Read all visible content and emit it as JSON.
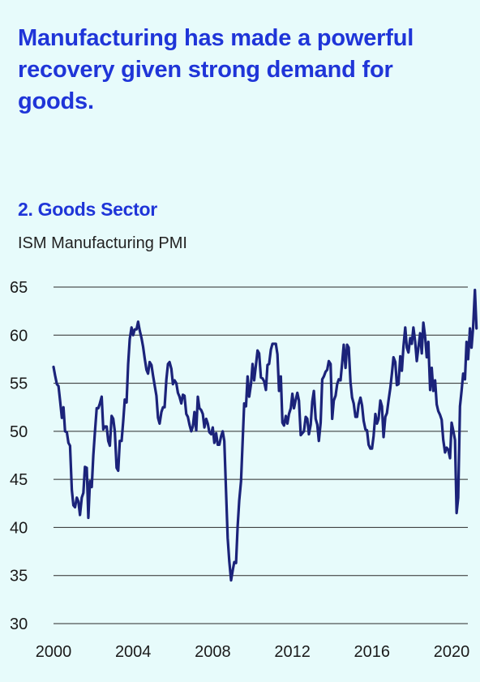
{
  "headline": "Manufacturing has made a powerful recovery given strong demand for goods.",
  "chart_data": {
    "type": "line",
    "title": "2. Goods Sector",
    "subtitle": "ISM Manufacturing PMI",
    "xlabel": "",
    "ylabel": "",
    "ylim": [
      30,
      65
    ],
    "xlim": [
      2000,
      2021.3
    ],
    "yticks": [
      30,
      35,
      40,
      45,
      50,
      55,
      60,
      65
    ],
    "xticks": [
      2000,
      2004,
      2008,
      2012,
      2016,
      2020
    ],
    "grid": "horizontal",
    "line_color": "#1b237a",
    "series": [
      {
        "x": [
          2000.0,
          2000.08,
          2000.17,
          2000.25,
          2000.33,
          2000.42,
          2000.5,
          2000.58,
          2000.67,
          2000.75,
          2000.83,
          2000.92,
          2001.0,
          2001.08,
          2001.17,
          2001.25,
          2001.33,
          2001.42,
          2001.5,
          2001.58,
          2001.67,
          2001.75,
          2001.83,
          2001.92,
          2002.0,
          2002.08,
          2002.17,
          2002.25,
          2002.33,
          2002.42,
          2002.5,
          2002.58,
          2002.67,
          2002.75,
          2002.83,
          2002.92,
          2003.0,
          2003.08,
          2003.17,
          2003.25,
          2003.33,
          2003.42,
          2003.5,
          2003.58,
          2003.67,
          2003.75,
          2003.83,
          2003.92,
          2004.0,
          2004.08,
          2004.17,
          2004.25,
          2004.33,
          2004.42,
          2004.5,
          2004.58,
          2004.67,
          2004.75,
          2004.83,
          2004.92,
          2005.0,
          2005.08,
          2005.17,
          2005.25,
          2005.33,
          2005.42,
          2005.5,
          2005.58,
          2005.67,
          2005.75,
          2005.83,
          2005.92,
          2006.0,
          2006.08,
          2006.17,
          2006.25,
          2006.33,
          2006.42,
          2006.5,
          2006.58,
          2006.67,
          2006.75,
          2006.83,
          2006.92,
          2007.0,
          2007.08,
          2007.17,
          2007.25,
          2007.33,
          2007.42,
          2007.5,
          2007.58,
          2007.67,
          2007.75,
          2007.83,
          2007.92,
          2008.0,
          2008.08,
          2008.17,
          2008.25,
          2008.33,
          2008.42,
          2008.5,
          2008.58,
          2008.67,
          2008.75,
          2008.83,
          2008.92,
          2009.0,
          2009.08,
          2009.17,
          2009.25,
          2009.33,
          2009.42,
          2009.5,
          2009.58,
          2009.67,
          2009.75,
          2009.83,
          2009.92,
          2010.0,
          2010.08,
          2010.17,
          2010.25,
          2010.33,
          2010.42,
          2010.5,
          2010.58,
          2010.67,
          2010.75,
          2010.83,
          2010.92,
          2011.0,
          2011.08,
          2011.17,
          2011.25,
          2011.33,
          2011.42,
          2011.5,
          2011.58,
          2011.67,
          2011.75,
          2011.83,
          2011.92,
          2012.0,
          2012.08,
          2012.17,
          2012.25,
          2012.33,
          2012.42,
          2012.5,
          2012.58,
          2012.67,
          2012.75,
          2012.83,
          2012.92,
          2013.0,
          2013.08,
          2013.17,
          2013.25,
          2013.33,
          2013.42,
          2013.5,
          2013.58,
          2013.67,
          2013.75,
          2013.83,
          2013.92,
          2014.0,
          2014.08,
          2014.17,
          2014.25,
          2014.33,
          2014.42,
          2014.5,
          2014.58,
          2014.67,
          2014.75,
          2014.83,
          2014.92,
          2015.0,
          2015.08,
          2015.17,
          2015.25,
          2015.33,
          2015.42,
          2015.5,
          2015.58,
          2015.67,
          2015.75,
          2015.83,
          2015.92,
          2016.0,
          2016.08,
          2016.17,
          2016.25,
          2016.33,
          2016.42,
          2016.5,
          2016.58,
          2016.67,
          2016.75,
          2016.83,
          2016.92,
          2017.0,
          2017.08,
          2017.17,
          2017.25,
          2017.33,
          2017.42,
          2017.5,
          2017.58,
          2017.67,
          2017.75,
          2017.83,
          2017.92,
          2018.0,
          2018.08,
          2018.17,
          2018.25,
          2018.33,
          2018.42,
          2018.5,
          2018.58,
          2018.67,
          2018.75,
          2018.83,
          2018.92,
          2019.0,
          2019.08,
          2019.17,
          2019.25,
          2019.33,
          2019.42,
          2019.5,
          2019.58,
          2019.67,
          2019.75,
          2019.83,
          2019.92,
          2020.0,
          2020.08,
          2020.17,
          2020.25,
          2020.33,
          2020.42,
          2020.5,
          2020.58,
          2020.67,
          2020.75,
          2020.83,
          2020.92,
          2021.0,
          2021.08,
          2021.17,
          2021.25
        ],
        "y": [
          56.7,
          55.8,
          54.9,
          54.7,
          53.2,
          51.4,
          52.5,
          50.0,
          49.9,
          48.8,
          48.5,
          43.9,
          42.3,
          42.1,
          43.1,
          42.7,
          41.3,
          43.1,
          43.6,
          46.3,
          46.2,
          41.0,
          44.8,
          44.2,
          47.5,
          49.9,
          52.4,
          52.4,
          52.9,
          53.6,
          50.2,
          50.5,
          50.5,
          49.0,
          48.5,
          51.6,
          51.3,
          50.0,
          46.2,
          45.9,
          49.0,
          49.0,
          51.0,
          53.3,
          53.0,
          57.0,
          59.6,
          60.8,
          60.0,
          60.6,
          60.6,
          61.4,
          60.5,
          59.7,
          58.8,
          57.6,
          56.4,
          56.0,
          57.2,
          56.9,
          55.8,
          54.8,
          53.7,
          51.4,
          50.8,
          52.0,
          52.5,
          52.5,
          55.4,
          57.0,
          57.2,
          56.5,
          54.9,
          55.3,
          55.0,
          54.0,
          53.6,
          52.9,
          53.8,
          53.7,
          51.8,
          51.5,
          50.7,
          50.0,
          50.5,
          52.0,
          50.1,
          53.6,
          52.4,
          52.2,
          51.8,
          50.4,
          51.3,
          50.8,
          49.9,
          49.7,
          50.4,
          48.8,
          49.8,
          48.6,
          48.6,
          49.5,
          50.0,
          49.0,
          43.6,
          38.9,
          36.5,
          34.5,
          35.5,
          36.4,
          36.3,
          40.1,
          42.8,
          44.8,
          48.9,
          52.9,
          52.6,
          55.7,
          53.6,
          54.9,
          57.0,
          55.3,
          56.9,
          58.4,
          58.1,
          55.6,
          55.5,
          55.2,
          54.3,
          56.9,
          57.0,
          58.5,
          59.1,
          59.1,
          59.1,
          58.0,
          54.2,
          55.7,
          50.9,
          50.6,
          51.6,
          50.8,
          51.8,
          52.4,
          53.9,
          52.4,
          53.3,
          54.0,
          53.2,
          49.6,
          49.8,
          50.0,
          51.5,
          51.3,
          49.7,
          50.7,
          53.1,
          54.2,
          51.3,
          50.7,
          49.0,
          50.9,
          55.4,
          55.7,
          56.2,
          56.4,
          57.3,
          57.0,
          51.3,
          53.2,
          53.7,
          54.9,
          55.4,
          55.3,
          57.1,
          59.0,
          56.6,
          59.0,
          58.7,
          55.1,
          53.5,
          52.9,
          51.5,
          51.5,
          52.8,
          53.5,
          52.7,
          51.1,
          50.2,
          50.1,
          48.6,
          48.2,
          48.2,
          49.5,
          51.8,
          50.8,
          51.3,
          53.2,
          52.6,
          49.4,
          51.5,
          51.9,
          53.2,
          54.5,
          56.0,
          57.7,
          57.2,
          54.8,
          54.9,
          57.8,
          56.3,
          58.8,
          60.8,
          58.7,
          58.2,
          59.7,
          59.1,
          60.8,
          59.3,
          57.3,
          58.7,
          60.2,
          58.1,
          61.3,
          59.8,
          57.7,
          59.3,
          54.3,
          56.6,
          54.2,
          55.3,
          52.8,
          52.1,
          51.7,
          51.2,
          49.1,
          47.8,
          48.3,
          48.1,
          47.2,
          50.9,
          50.1,
          49.1,
          41.5,
          43.1,
          52.6,
          54.2,
          56.0,
          55.4,
          59.3,
          57.5,
          60.7,
          58.7,
          60.8,
          64.7,
          60.7
        ]
      }
    ]
  }
}
